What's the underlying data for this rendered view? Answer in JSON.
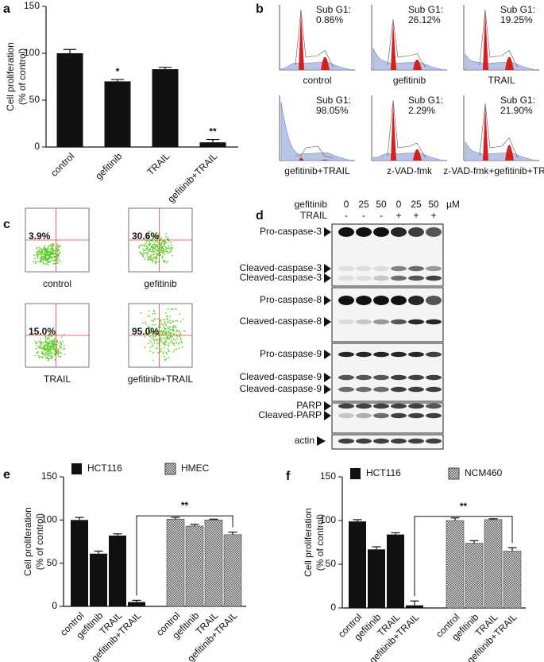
{
  "chart_data": [
    {
      "type": "bar",
      "panel_label": "a",
      "y_label": [
        "Cell proliferation",
        "(% of control)"
      ],
      "categories": [
        "control",
        "gefitinib",
        "TRAIL",
        "gefitinib+TRAIL"
      ],
      "values": [
        100,
        70,
        83,
        5
      ],
      "errors": [
        4,
        2,
        2,
        3
      ],
      "color": "#111111",
      "value_annotations": [
        null,
        "*",
        null,
        "**"
      ],
      "ylim": [
        0,
        150
      ],
      "yticks": [
        0,
        50,
        100,
        150
      ]
    },
    {
      "type": "bar",
      "panel_label": "e",
      "y_label": [
        "Cell proliferation",
        "(% of control)"
      ],
      "categories": [
        "control",
        "gefitinib",
        "TRAIL",
        "gefitinib+TRAIL",
        "control",
        "gefitinib",
        "TRAIL",
        "gefitinib+TRAIL"
      ],
      "series": [
        {
          "name": "HCT116",
          "color": "#111111",
          "values": [
            100,
            61,
            82,
            5,
            null,
            null,
            null,
            null
          ],
          "errors": [
            3,
            3,
            2,
            2,
            null,
            null,
            null,
            null
          ]
        },
        {
          "name": "HMEC",
          "color": "#9a9a9a",
          "pattern": "checker",
          "values": [
            null,
            null,
            null,
            null,
            101,
            93,
            100,
            83
          ],
          "errors": [
            null,
            null,
            null,
            null,
            2,
            2,
            1,
            3
          ]
        }
      ],
      "bracket_label": "**",
      "ylim": [
        0,
        150
      ],
      "yticks": [
        0,
        50,
        100,
        150
      ]
    },
    {
      "type": "bar",
      "panel_label": "f",
      "y_label": [
        "Cell proliferation",
        "(% of control)"
      ],
      "categories": [
        "control",
        "gefitinib",
        "TRAIL",
        "gefitinib+TRAIL",
        "control",
        "gefitinib",
        "TRAIL",
        "gefitinib+TRAIL"
      ],
      "series": [
        {
          "name": "HCT116",
          "color": "#111111",
          "values": [
            99,
            67,
            84,
            3,
            null,
            null,
            null,
            null
          ],
          "errors": [
            2,
            3,
            2,
            5,
            null,
            null,
            null,
            null
          ]
        },
        {
          "name": "NCM460",
          "color": "#9a9a9a",
          "pattern": "checker",
          "values": [
            null,
            null,
            null,
            null,
            100,
            74,
            101,
            65
          ],
          "errors": [
            null,
            null,
            null,
            null,
            3,
            3,
            1,
            4
          ]
        }
      ],
      "bracket_label": "**",
      "ylim": [
        0,
        150
      ],
      "yticks": [
        0,
        50,
        100,
        150
      ]
    }
  ],
  "panel_b": {
    "label": "b",
    "plots": [
      {
        "sub_g1_label": "Sub G1:",
        "sub_g1": "0.86%",
        "name": "control"
      },
      {
        "sub_g1_label": "Sub G1:",
        "sub_g1": "26.12%",
        "name": "gefitinib"
      },
      {
        "sub_g1_label": "Sub G1:",
        "sub_g1": "19.25%",
        "name": "TRAIL"
      },
      {
        "sub_g1_label": "Sub G1:",
        "sub_g1": "98.05%",
        "name": "gefitinib+TRAIL"
      },
      {
        "sub_g1_label": "Sub G1:",
        "sub_g1": "2.29%",
        "name": "z-VAD-fmk"
      },
      {
        "sub_g1_label": "Sub G1:",
        "sub_g1": "21.90%",
        "name": "z-VAD-fmk+gefitinib+TRAIL"
      }
    ]
  },
  "panel_c": {
    "label": "c",
    "plots": [
      {
        "percent": "3.9%",
        "name": "control"
      },
      {
        "percent": "30.6%",
        "name": "gefitinib"
      },
      {
        "percent": "15.0%",
        "name": "TRAIL"
      },
      {
        "percent": "95.0%",
        "name": "gefitinib+TRAIL"
      }
    ]
  },
  "panel_d": {
    "label": "d",
    "treatments": [
      {
        "name": "gefitinib",
        "levels": [
          "0",
          "25",
          "50",
          "0",
          "25",
          "50"
        ],
        "unit": "µM"
      },
      {
        "name": "TRAIL",
        "levels": [
          "-",
          "-",
          "-",
          "+",
          "+",
          "+"
        ]
      }
    ],
    "bands": [
      "Pro-caspase-3",
      "Cleaved-caspase-3",
      "Cleaved-caspase-3",
      "Pro-caspase-8",
      "Cleaved-caspase-8",
      "Pro-caspase-9",
      "Cleaved-caspase-9",
      "Cleaved-caspase-9",
      "PARP",
      "Cleaved-PARP",
      "actin"
    ]
  }
}
